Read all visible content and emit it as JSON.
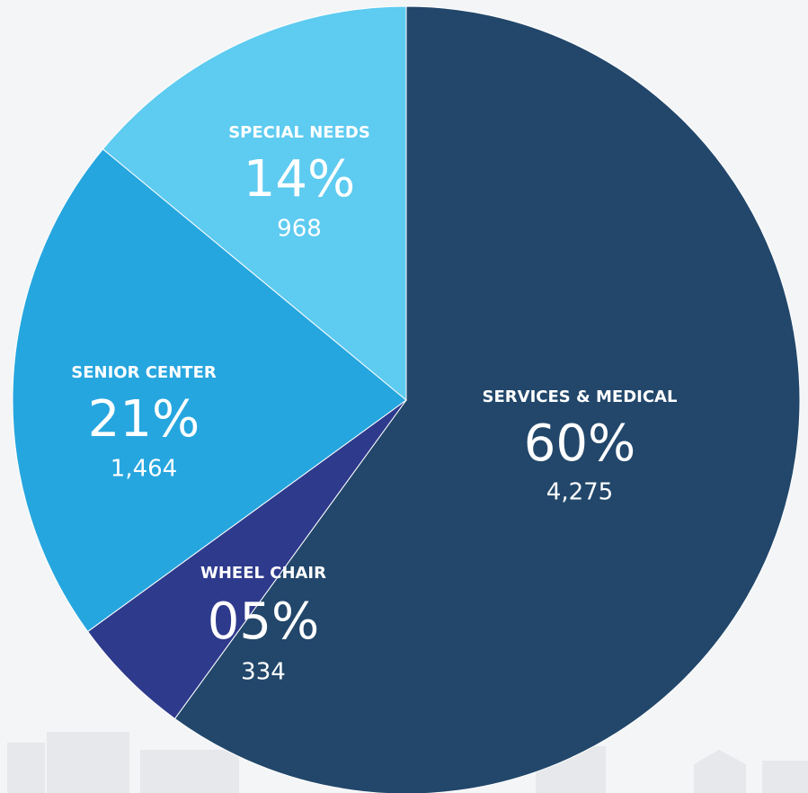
{
  "chart_data": {
    "type": "pie",
    "categories": [
      "SERVICES & MEDICAL",
      "WHEEL CHAIR",
      "SENIOR CENTER",
      "SPECIAL NEEDS"
    ],
    "values": [
      60,
      5,
      21,
      14
    ],
    "value_labels": [
      "60%",
      "05%",
      "21%",
      "14%"
    ],
    "counts": [
      4275,
      334,
      1464,
      968
    ],
    "count_labels": [
      "4,275",
      "334",
      "1,464",
      "968"
    ],
    "colors": [
      "#22476b",
      "#2e3a8c",
      "#26a6df",
      "#5ecbf0"
    ]
  }
}
